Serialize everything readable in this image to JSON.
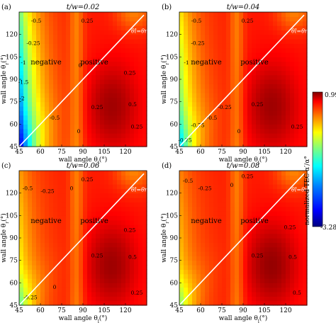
{
  "chart_data": [
    {
      "type": "heatmap",
      "panel_label": "(a)",
      "title": "t/w=0.02",
      "xlabel": "wall angle θ",
      "xlabel_sub": "l",
      "xlabel_unit": "(°)",
      "ylabel": "wall angle θ",
      "ylabel_sub": "r",
      "ylabel_unit": "(°)",
      "xlim": [
        45,
        135
      ],
      "ylim": [
        45,
        135
      ],
      "xticks": [
        "45",
        "60",
        "75",
        "90",
        "105",
        "120"
      ],
      "yticks": [
        "45",
        "60",
        "75",
        "90",
        "105",
        "120"
      ],
      "region_labels": [
        "negative",
        "positive"
      ],
      "diagonal_label": "θl=θr",
      "contour_labels": [
        "-0.5",
        "-1",
        "-1.5",
        "-2",
        "-0.5",
        "0",
        "0",
        "0.25",
        "0.25",
        "0.5",
        "0.25",
        "-0.25",
        "0.25"
      ],
      "contour_label_pos": [
        [
          57,
          128
        ],
        [
          48,
          100
        ],
        [
          48,
          87
        ],
        [
          47,
          76
        ],
        [
          70,
          63
        ],
        [
          87,
          54
        ],
        [
          88,
          98
        ],
        [
          93,
          128
        ],
        [
          100,
          70
        ],
        [
          125,
          72
        ],
        [
          123,
          93
        ],
        [
          55,
          113
        ],
        [
          128,
          57
        ]
      ],
      "field": "a"
    },
    {
      "type": "heatmap",
      "panel_label": "(b)",
      "title": "t/w=0.04",
      "xlabel": "wall angle θ",
      "xlabel_sub": "l",
      "xlabel_unit": "(°)",
      "ylabel": "wall angle θ",
      "ylabel_sub": "r",
      "ylabel_unit": "(°)",
      "xlim": [
        45,
        135
      ],
      "ylim": [
        45,
        135
      ],
      "xticks": [
        "45",
        "60",
        "75",
        "90",
        "105",
        "120"
      ],
      "yticks": [
        "45",
        "60",
        "75",
        "90",
        "105",
        "120"
      ],
      "region_labels": [
        "negative",
        "positive"
      ],
      "diagonal_label": "θl=θr",
      "contour_labels": [
        "-0.5",
        "-1",
        "-0.5",
        "-0.75",
        "-0.25",
        "0",
        "0.25",
        "0.25",
        "-0.25",
        "0.25",
        "-0.75"
      ],
      "contour_label_pos": [
        [
          57,
          128
        ],
        [
          50,
          100
        ],
        [
          68,
          63
        ],
        [
          58,
          58
        ],
        [
          77,
          70
        ],
        [
          87,
          54
        ],
        [
          93,
          128
        ],
        [
          100,
          72
        ],
        [
          58,
          113
        ],
        [
          128,
          57
        ],
        [
          49,
          48
        ]
      ],
      "field": "b"
    },
    {
      "type": "heatmap",
      "panel_label": "(c)",
      "title": "t/w=0.06",
      "xlabel": "wall angle θ",
      "xlabel_sub": "l",
      "xlabel_unit": "(°)",
      "ylabel": "wall angle θ",
      "ylabel_sub": "r",
      "ylabel_unit": "(°)",
      "xlim": [
        45,
        135
      ],
      "ylim": [
        45,
        135
      ],
      "xticks": [
        "45",
        "60",
        "75",
        "90",
        "105",
        "120"
      ],
      "yticks": [
        "45",
        "60",
        "75",
        "90",
        "105",
        "120"
      ],
      "region_labels": [
        "negative",
        "positive"
      ],
      "diagonal_label": "θl=θr",
      "contour_labels": [
        "-0.5",
        "-0.25",
        "0",
        "0.25",
        "0.25",
        "0.5",
        "0.25",
        "-0.25",
        "0",
        "0.25"
      ],
      "contour_label_pos": [
        [
          51,
          122
        ],
        [
          65,
          120
        ],
        [
          82,
          122
        ],
        [
          93,
          128
        ],
        [
          100,
          77
        ],
        [
          125,
          76
        ],
        [
          123,
          94
        ],
        [
          53,
          49
        ],
        [
          70,
          56
        ],
        [
          128,
          52
        ]
      ],
      "field": "c"
    },
    {
      "type": "heatmap",
      "panel_label": "(d)",
      "title": "t/w=0.08",
      "xlabel": "wall angle θ",
      "xlabel_sub": "l",
      "xlabel_unit": "(°)",
      "ylabel": "wall angle θ",
      "ylabel_sub": "r",
      "ylabel_unit": "(°)",
      "xlim": [
        45,
        135
      ],
      "ylim": [
        45,
        135
      ],
      "xticks": [
        "45",
        "60",
        "75",
        "90",
        "105",
        "120"
      ],
      "yticks": [
        "45",
        "60",
        "75",
        "90",
        "105",
        "120"
      ],
      "region_labels": [
        "negative",
        "positive"
      ],
      "diagonal_label": "θl=θr",
      "contour_labels": [
        "-0.5",
        "-0.25",
        "0",
        "0.25",
        "0.25",
        "0.5",
        "0.25",
        "0.5"
      ],
      "contour_label_pos": [
        [
          51,
          127
        ],
        [
          63,
          122
        ],
        [
          82,
          124
        ],
        [
          93,
          130
        ],
        [
          100,
          77
        ],
        [
          125,
          76
        ],
        [
          123,
          96
        ],
        [
          128,
          52
        ]
      ],
      "field": "d"
    }
  ],
  "colorbar": {
    "label": "normalized TEC α′/α°",
    "max_label": "0.99",
    "min_label": "-3.28",
    "vmin": -3.28,
    "vmax": 0.99
  },
  "colors": {
    "cmap": [
      "#00007f",
      "#0000ff",
      "#007fff",
      "#00ffff",
      "#7fff7f",
      "#ffff00",
      "#ff7f00",
      "#ff0000",
      "#7f0000"
    ],
    "diagonal": "#ffffff",
    "contour": "#333333"
  }
}
